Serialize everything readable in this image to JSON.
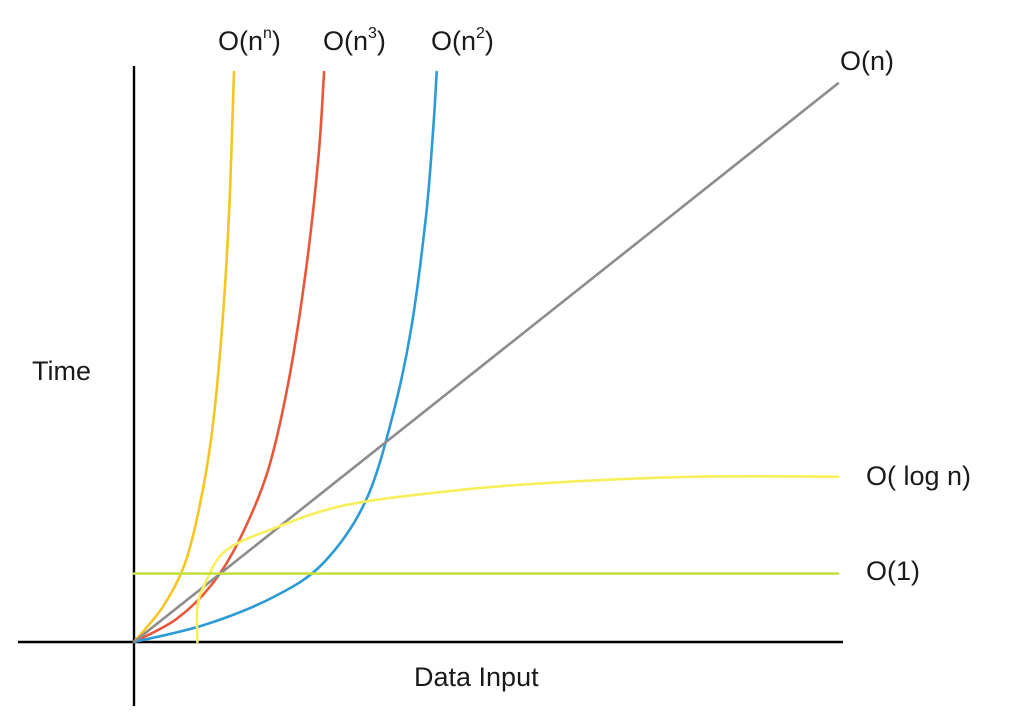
{
  "chart_data": {
    "type": "line",
    "title": "",
    "xlabel": "Data Input",
    "ylabel": "Time",
    "grid": false,
    "legend": "none",
    "series": [
      {
        "name": "O(n^n)",
        "label": {
          "base": "O(n",
          "sup": "n",
          "close": ")"
        },
        "color": "#f4c61f",
        "points": [
          [
            0,
            0
          ],
          [
            0.04,
            0.06
          ],
          [
            0.07,
            0.13
          ],
          [
            0.09,
            0.22
          ],
          [
            0.11,
            0.36
          ],
          [
            0.125,
            0.55
          ],
          [
            0.135,
            0.75
          ],
          [
            0.142,
            1.0
          ]
        ]
      },
      {
        "name": "O(n^3)",
        "label": {
          "base": "O(n",
          "sup": "3",
          "close": ")"
        },
        "color": "#e8573c",
        "points": [
          [
            0,
            0
          ],
          [
            0.06,
            0.04
          ],
          [
            0.11,
            0.1
          ],
          [
            0.15,
            0.18
          ],
          [
            0.19,
            0.3
          ],
          [
            0.22,
            0.46
          ],
          [
            0.245,
            0.66
          ],
          [
            0.262,
            0.85
          ],
          [
            0.27,
            1.0
          ]
        ]
      },
      {
        "name": "O(n^2)",
        "label": {
          "base": "O(n",
          "sup": "2",
          "close": ")"
        },
        "color": "#2b9ad6",
        "points": [
          [
            0,
            0
          ],
          [
            0.1,
            0.03
          ],
          [
            0.2,
            0.08
          ],
          [
            0.27,
            0.14
          ],
          [
            0.33,
            0.25
          ],
          [
            0.37,
            0.41
          ],
          [
            0.395,
            0.56
          ],
          [
            0.415,
            0.75
          ],
          [
            0.425,
            0.9
          ],
          [
            0.43,
            1.0
          ]
        ]
      },
      {
        "name": "O(n)",
        "label": {
          "base": "O(n)",
          "sup": "",
          "close": ""
        },
        "color": "#8c8c8c",
        "points": [
          [
            0,
            0
          ],
          [
            1.0,
            0.98
          ]
        ]
      },
      {
        "name": "O( log n)",
        "label": {
          "base": "O( log n)",
          "sup": "",
          "close": ""
        },
        "color": "#f7f05a",
        "points": [
          [
            0.09,
            0
          ],
          [
            0.09,
            0.06
          ],
          [
            0.1,
            0.1
          ],
          [
            0.13,
            0.16
          ],
          [
            0.2,
            0.2
          ],
          [
            0.3,
            0.24
          ],
          [
            0.45,
            0.265
          ],
          [
            0.6,
            0.28
          ],
          [
            0.8,
            0.29
          ],
          [
            1.0,
            0.29
          ]
        ]
      },
      {
        "name": "O(1)",
        "label": {
          "base": "O(1)",
          "sup": "",
          "close": ""
        },
        "color": "#c4e045",
        "points": [
          [
            0,
            0.12
          ],
          [
            1.0,
            0.12
          ]
        ]
      }
    ]
  }
}
